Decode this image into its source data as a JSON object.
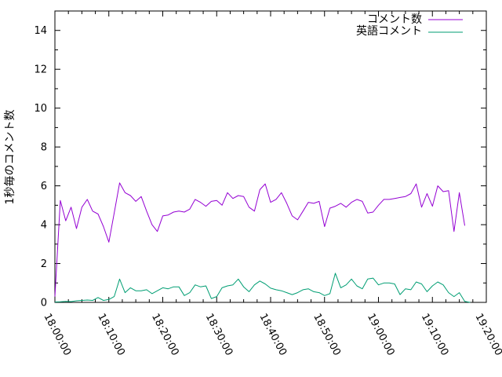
{
  "chart_data": {
    "type": "line",
    "title": "",
    "xlabel": "",
    "ylabel": "1秒毎のコメント数",
    "grid": false,
    "legend_position": "top-right-inside",
    "background_color": "#ffffff",
    "axis_color": "#000000",
    "x_axis": {
      "kind": "time",
      "tick_labels": [
        "18:00:00",
        "18:10:00",
        "18:20:00",
        "18:30:00",
        "18:40:00",
        "18:50:00",
        "19:00:00",
        "19:10:00",
        "19:20:00"
      ],
      "major_step_minutes": 10,
      "minor_step_minutes": 2.5,
      "range_minutes": [
        0,
        80
      ],
      "label_rotation_deg": 62
    },
    "y_axis": {
      "tick_labels": [
        "0",
        "2",
        "4",
        "6",
        "8",
        "10",
        "12",
        "14"
      ],
      "ticks": [
        0,
        2,
        4,
        6,
        8,
        10,
        12,
        14
      ],
      "minor_step": 1,
      "range": [
        0,
        15
      ]
    },
    "series": [
      {
        "name": "コメント数",
        "color": "#9400d3",
        "start_minute": 0,
        "step_minutes": 1,
        "values": [
          0.3,
          5.25,
          4.2,
          4.9,
          3.8,
          4.9,
          5.3,
          4.7,
          4.55,
          3.9,
          3.1,
          4.6,
          6.15,
          5.65,
          5.5,
          5.2,
          5.45,
          4.7,
          4.0,
          3.65,
          4.45,
          4.5,
          4.65,
          4.7,
          4.65,
          4.8,
          5.3,
          5.15,
          4.95,
          5.2,
          5.25,
          5.0,
          5.65,
          5.35,
          5.5,
          5.45,
          4.9,
          4.7,
          5.8,
          6.1,
          5.15,
          5.3,
          5.65,
          5.1,
          4.45,
          4.25,
          4.7,
          5.15,
          5.1,
          5.2,
          3.9,
          4.85,
          4.95,
          5.1,
          4.9,
          5.15,
          5.3,
          5.2,
          4.6,
          4.65,
          5.0,
          5.3,
          5.3,
          5.35,
          5.4,
          5.45,
          5.6,
          6.1,
          4.9,
          5.6,
          4.95,
          6.0,
          5.7,
          5.75,
          3.65,
          5.65,
          3.95
        ]
      },
      {
        "name": "英語コメント",
        "color": "#009e73",
        "start_minute": 0,
        "step_minutes": 1,
        "values": [
          0.02,
          0.03,
          0.05,
          0.04,
          0.08,
          0.1,
          0.12,
          0.1,
          0.25,
          0.1,
          0.15,
          0.3,
          1.2,
          0.5,
          0.75,
          0.6,
          0.6,
          0.65,
          0.45,
          0.6,
          0.75,
          0.7,
          0.8,
          0.8,
          0.35,
          0.5,
          0.9,
          0.8,
          0.85,
          0.2,
          0.3,
          0.75,
          0.85,
          0.9,
          1.2,
          0.8,
          0.55,
          0.9,
          1.1,
          0.95,
          0.73,
          0.65,
          0.6,
          0.5,
          0.4,
          0.5,
          0.65,
          0.7,
          0.55,
          0.5,
          0.35,
          0.45,
          1.5,
          0.75,
          0.9,
          1.2,
          0.85,
          0.7,
          1.2,
          1.25,
          0.9,
          1.0,
          1.0,
          0.95,
          0.4,
          0.7,
          0.65,
          1.05,
          0.95,
          0.55,
          0.85,
          1.05,
          0.9,
          0.5,
          0.3,
          0.5,
          0.05,
          0.0
        ]
      }
    ]
  }
}
